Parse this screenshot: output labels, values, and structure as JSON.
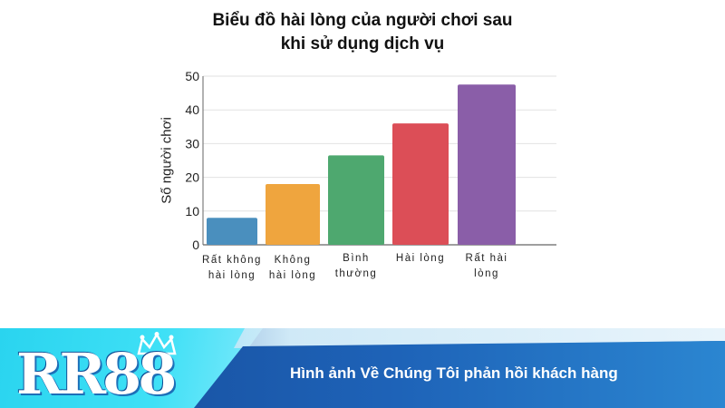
{
  "chart_data": {
    "type": "bar",
    "title_lines": [
      "Biểu đồ hài lòng của người chơi sau",
      "khi sử dụng dịch vụ"
    ],
    "ylabel": "Số người chơi",
    "xlabel": "",
    "ylim": [
      0,
      50
    ],
    "yticks": [
      0,
      10,
      20,
      30,
      40,
      50
    ],
    "grid": true,
    "categories": [
      [
        "Rất không",
        "hài lòng"
      ],
      [
        "Không",
        "hài lòng"
      ],
      [
        "Bình",
        "thường"
      ],
      [
        "Hài lòng"
      ],
      [
        "Rất hài",
        "lòng"
      ]
    ],
    "values": [
      8,
      18,
      26.5,
      36,
      47.5
    ],
    "colors": [
      "#4a8fbe",
      "#efa53e",
      "#4ea86f",
      "#dc4e57",
      "#8a5ea8"
    ]
  },
  "banner": {
    "logo_text": "RR88",
    "caption": "Hình ảnh Về Chúng Tôi phản hồi khách hàng"
  }
}
